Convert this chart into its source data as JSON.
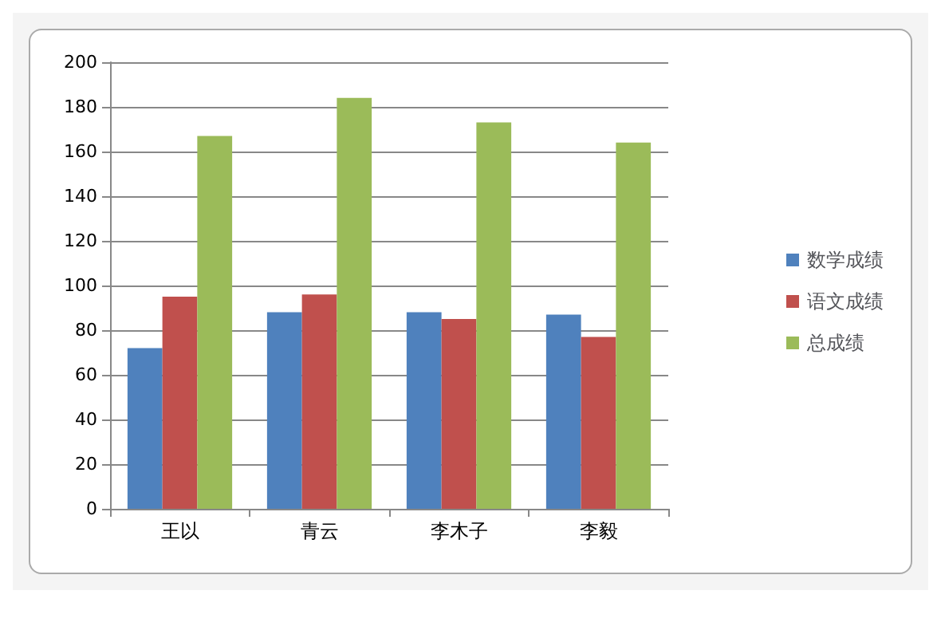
{
  "chart_data": {
    "type": "bar",
    "categories": [
      "王以",
      "青云",
      "李木子",
      "李毅"
    ],
    "series": [
      {
        "name": "数学成绩",
        "color": "#4f81bd",
        "values": [
          72,
          88,
          88,
          87
        ]
      },
      {
        "name": "语文成绩",
        "color": "#c0504d",
        "values": [
          95,
          96,
          85,
          77
        ]
      },
      {
        "name": "总成绩",
        "color": "#9bbb59",
        "values": [
          167,
          184,
          173,
          164
        ]
      }
    ],
    "ylim": [
      0,
      200
    ],
    "yticks": [
      0,
      20,
      40,
      60,
      80,
      100,
      120,
      140,
      160,
      180,
      200
    ],
    "grid": "y",
    "legend": "right"
  }
}
